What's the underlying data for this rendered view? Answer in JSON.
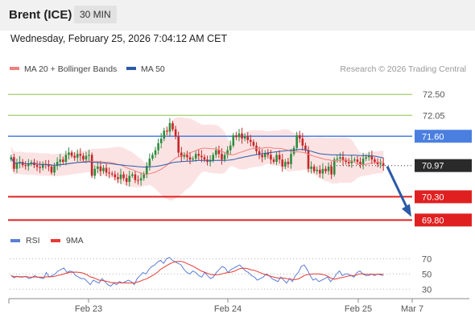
{
  "header": {
    "instrument": "Brent (ICE)",
    "timeframe": "30 MIN"
  },
  "timestamp": "Wednesday, February 25, 2026 7:04:12 AM CET",
  "legend": {
    "ma_label": "MA 20 + Bollinger Bands",
    "ma50_label": "MA 50",
    "credit": "Research © 2026 Trading Central"
  },
  "colors": {
    "ma20": "#f08080",
    "ma50": "#2b5aa8",
    "band_fill": "#fcdede",
    "resistance": "#8bc34a",
    "pivot": "#4a7fe0",
    "support": "#e02020",
    "candle_up": "#2e8b3e",
    "candle_down": "#c62828",
    "rsi": "#5b7fd6",
    "rsi_ma": "#e53935",
    "arrow": "#2b5aa8"
  },
  "chart_data": {
    "type": "candlestick",
    "x_ticks": [
      "Feb 23",
      "Feb 24",
      "Feb 25",
      "Mar 7"
    ],
    "y_ticks": [
      72.5,
      72.05
    ],
    "levels": [
      {
        "value": 72.5,
        "label": "72.50",
        "kind": "resistance"
      },
      {
        "value": 72.05,
        "label": "72.05",
        "kind": "resistance"
      },
      {
        "value": 71.6,
        "label": "71.60",
        "kind": "pivot"
      },
      {
        "value": 70.97,
        "label": "70.97",
        "kind": "last"
      },
      {
        "value": 70.3,
        "label": "70.30",
        "kind": "support"
      },
      {
        "value": 69.8,
        "label": "69.80",
        "kind": "support"
      }
    ],
    "ylim": [
      69.65,
      72.85
    ],
    "close": [
      71.15,
      70.9,
      71.02,
      71.05,
      70.98,
      70.96,
      71.0,
      71.04,
      70.98,
      70.94,
      70.92,
      71.0,
      70.98,
      70.95,
      70.82,
      70.96,
      71.05,
      71.1,
      71.05,
      71.2,
      71.25,
      71.18,
      71.14,
      71.22,
      71.18,
      71.1,
      71.18,
      71.2,
      70.75,
      70.9,
      70.95,
      70.85,
      70.92,
      70.82,
      70.8,
      70.78,
      70.72,
      70.68,
      70.78,
      70.7,
      70.62,
      70.75,
      70.78,
      70.66,
      70.65,
      70.7,
      70.78,
      70.96,
      71.12,
      71.2,
      71.3,
      71.45,
      71.55,
      71.72,
      71.7,
      71.88,
      71.75,
      71.6,
      71.25,
      71.16,
      71.2,
      71.15,
      71.1,
      71.12,
      71.22,
      71.18,
      71.15,
      71.1,
      71.05,
      71.08,
      71.2,
      71.3,
      71.22,
      71.1,
      71.2,
      71.3,
      71.4,
      71.62,
      71.58,
      71.66,
      71.55,
      71.6,
      71.52,
      71.48,
      71.4,
      71.28,
      71.2,
      71.15,
      71.24,
      71.2,
      71.1,
      71.05,
      71.2,
      71.1,
      70.95,
      71.05,
      71.0,
      71.22,
      71.35,
      71.62,
      71.55,
      71.4,
      71.3,
      70.9,
      70.95,
      70.85,
      70.88,
      70.8,
      70.9,
      70.85,
      70.95,
      70.78,
      71.1,
      71.12,
      71.15,
      71.08,
      71.05,
      71.02,
      71.08,
      71.1,
      71.05,
      71.0,
      71.12,
      71.15,
      71.18,
      71.1,
      71.05,
      71.0,
      71.02,
      70.97
    ],
    "rsi": {
      "ylim": [
        25,
        78
      ],
      "ticks": [
        70,
        50,
        30
      ],
      "labels": [
        "RSI",
        "9MA"
      ],
      "values": [
        48,
        45,
        47,
        46,
        46,
        47,
        44,
        45,
        48,
        46,
        45,
        44,
        52,
        46,
        48,
        50,
        54,
        56,
        58,
        52,
        54,
        53,
        48,
        46,
        44,
        44,
        40,
        36,
        42,
        40,
        38,
        44,
        40,
        36,
        34,
        38,
        36,
        40,
        38,
        40,
        42,
        40,
        36,
        44,
        48,
        52,
        50,
        56,
        60,
        62,
        66,
        68,
        64,
        70,
        72,
        68,
        66,
        64,
        62,
        56,
        52,
        50,
        54,
        52,
        48,
        46,
        52,
        48,
        44,
        46,
        52,
        56,
        60,
        58,
        52,
        56,
        58,
        60,
        62,
        58,
        54,
        52,
        48,
        46,
        42,
        44,
        46,
        50,
        48,
        44,
        42,
        40,
        46,
        42,
        38,
        44,
        40,
        48,
        52,
        60,
        62,
        56,
        48,
        42,
        44,
        40,
        42,
        44,
        46,
        40,
        44,
        50,
        54,
        48,
        50,
        50,
        48,
        46,
        52,
        54,
        50,
        48,
        48,
        50,
        48,
        50,
        49,
        48
      ]
    }
  }
}
